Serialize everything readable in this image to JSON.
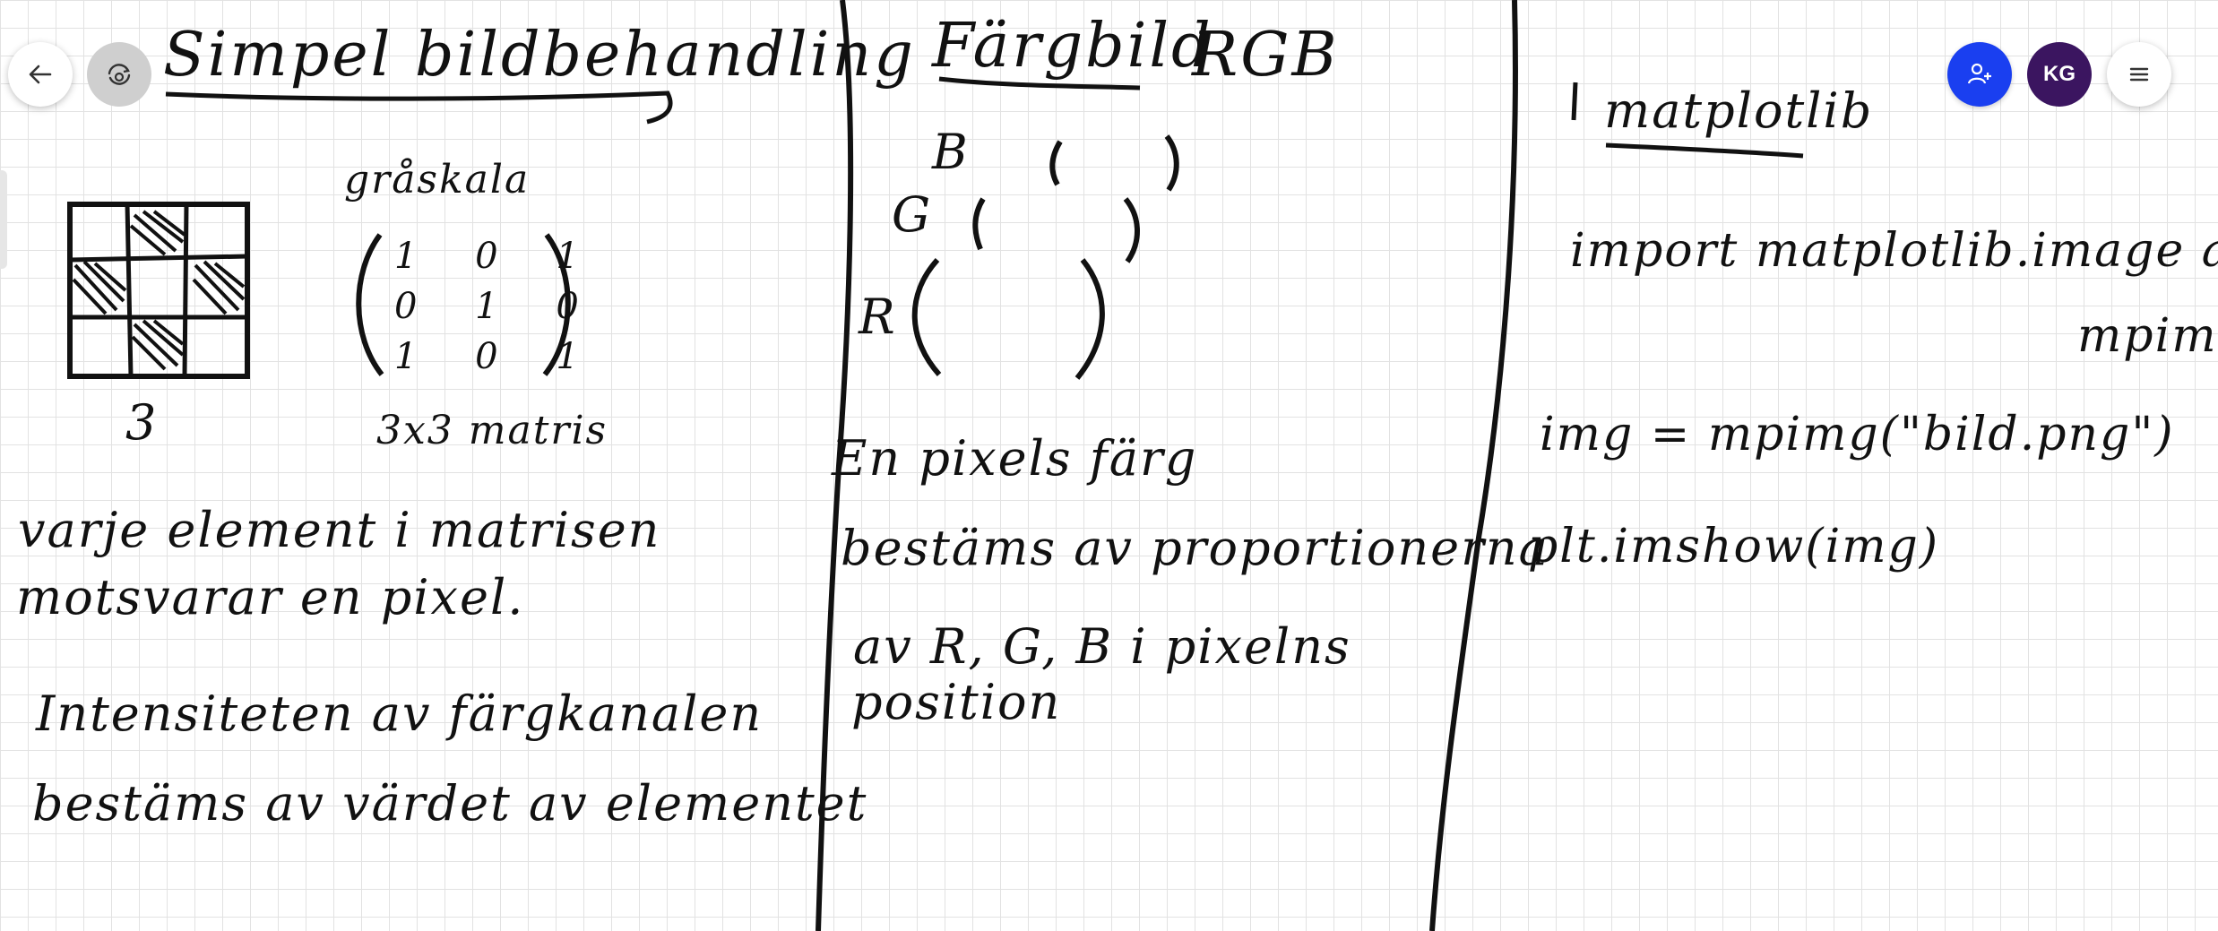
{
  "colors": {
    "ink": "#111111",
    "accent": "#1a3ff0",
    "avatar_bg": "#3b1560",
    "grid": "#e2e2e2"
  },
  "toolbar": {
    "back_icon": "arrow-left-icon",
    "sync_icon": "camera-sync-icon",
    "invite_icon": "person-add-icon",
    "avatar_initials": "KG",
    "menu_icon": "hamburger-menu-icon"
  },
  "section1": {
    "title": "Simpel bildbehandling",
    "grid_label": "3",
    "matrix_heading": "gråskala",
    "matrix_rows": [
      "1 0 1",
      "0 1 0",
      "1 0 1"
    ],
    "matrix_label": "3x3 matris",
    "line1": "varje element i matrisen",
    "line2": "motsvarar en pixel.",
    "line3": "Intensiteten av färgkanalen",
    "line4": "bestäms av värdet av elementet"
  },
  "section2": {
    "title": "Färgbild",
    "title_suffix": "RGB",
    "label_b": "B",
    "label_g": "G",
    "label_r": "R",
    "line1": "En pixels färg",
    "line2": "bestäms av proportionerna",
    "line3": "av R, G, B i pixelns",
    "line4": "position"
  },
  "section3": {
    "title": "matplotlib",
    "code1": "import matplotlib.image as",
    "code1b": "mpimg",
    "code2": "img = mpimg(\"bild.png\")",
    "code3": "plt.imshow(img)"
  }
}
